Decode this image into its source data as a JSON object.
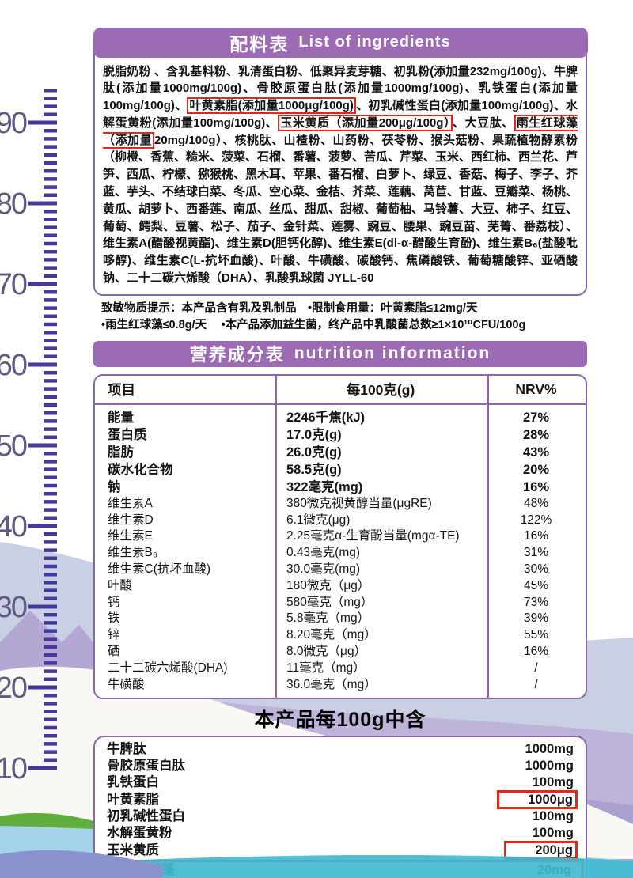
{
  "ingredients": {
    "title_zh": "配料表",
    "title_en": "List of ingredients",
    "segments": [
      {
        "text": "脱脂奶粉 、含乳基料粉、乳清蛋白粉、低聚异麦芽糖、初乳粉(添加量232mg/100g)、牛脾肽(添加量1000mg/100g)、骨胶原蛋白肽(添加量1000mg/100g)、乳铁蛋白(添加量100mg/100g)、",
        "boxed": false
      },
      {
        "text": "叶黄素脂(添加量1000μg/100g)",
        "boxed": true
      },
      {
        "text": "、初乳碱性蛋白(添加量100mg/100g)、水解蛋黄粉(添加量100mg/100g)、",
        "boxed": false
      },
      {
        "text": "玉米黄质（添加量200μg/100g）",
        "boxed": true
      },
      {
        "text": "、大豆肽、",
        "boxed": false
      },
      {
        "text": "雨生红球藻（添加量",
        "boxed": true
      },
      {
        "text": "20mg/100g）、核桃肽、山楂粉、山药粉、茯苓粉、猴头菇粉、果蔬植物酵素粉（柳橙、香蕉、糙米、菠菜、石榴、番薯、菠萝、苦瓜、芹菜、玉米、西红柿、西兰花、芦笋、西瓜、柠檬、猕猴桃、黑木耳、苹果、番石榴、白萝卜、绿豆、香菇、梅子、李子、芥蓝、芋头、不结球白菜、冬瓜、空心菜、金桔、芥菜、莲藕、莴苣、甘蓝、豆瓣菜、杨桃、黄瓜、胡萝卜、西番莲、南瓜、丝瓜、甜瓜、甜椒、葡萄柚、马铃薯、大豆、柿子、红豆、葡萄、鳄梨、豆薯、松子、茄子、金针菜、莲雾、豌豆、腰果、豌豆苗、芜菁、番荔枝）、维生素A(醋酸视黄酯)、维生素D(胆钙化醇)、维生素E(dl-α-醋酸生育酚)、维生素B₆(盐酸吡哆醇)、维生素C(L-抗坏血酸)、叶酸、牛磺酸、碳酸钙、焦磷酸铁、葡萄糖酸锌、亚硒酸钠、二十二碳六烯酸（DHA）、乳酸乳球菌 JYLL-60",
        "boxed": false
      }
    ]
  },
  "allergen": {
    "line1": "致敏物质提示：本产品含有乳及乳制品　•限制食用量：叶黄素脂≤12mg/天",
    "line2": "•雨生红球藻≤0.8g/天　 •本产品添加益生菌，终产品中乳酸菌总数≥1×10¹⁰CFU/100g"
  },
  "nutrition": {
    "title_zh": "营养成分表",
    "title_en": "nutrition information",
    "columns": [
      "项目",
      "每100克(g)",
      "NRV%"
    ],
    "rows": [
      {
        "name": "能量",
        "value": "2246千焦(kJ)",
        "nrv": "27%",
        "bold": true
      },
      {
        "name": "蛋白质",
        "value": "17.0克(g)",
        "nrv": "28%",
        "bold": true
      },
      {
        "name": "脂肪",
        "value": "26.0克(g)",
        "nrv": "43%",
        "bold": true
      },
      {
        "name": "碳水化合物",
        "value": "58.5克(g)",
        "nrv": "20%",
        "bold": true
      },
      {
        "name": "钠",
        "value": "322毫克(mg)",
        "nrv": "16%",
        "bold": true
      },
      {
        "name": "维生素A",
        "value": "380微克视黄醇当量(μgRE)",
        "nrv": "48%",
        "bold": false
      },
      {
        "name": "维生素D",
        "value": "6.1微克(μg)",
        "nrv": "122%",
        "bold": false
      },
      {
        "name": "维生素E",
        "value": "2.25毫克α-生育酚当量(mgα-TE)",
        "nrv": "16%",
        "bold": false
      },
      {
        "name": "维生素B₆",
        "value": "0.43毫克(mg)",
        "nrv": "31%",
        "bold": false
      },
      {
        "name": "维生素C(抗坏血酸)",
        "value": "30.0毫克(mg)",
        "nrv": "30%",
        "bold": false
      },
      {
        "name": "叶酸",
        "value": "180微克（μg）",
        "nrv": "45%",
        "bold": false
      },
      {
        "name": "钙",
        "value": "580毫克（mg）",
        "nrv": "73%",
        "bold": false
      },
      {
        "name": "铁",
        "value": "5.8毫克（mg）",
        "nrv": "39%",
        "bold": false
      },
      {
        "name": "锌",
        "value": "8.20毫克（mg）",
        "nrv": "55%",
        "bold": false
      },
      {
        "name": "硒",
        "value": "8.0微克（μg）",
        "nrv": "16%",
        "bold": false
      },
      {
        "name": "二十二碳六烯酸(DHA)",
        "value": "11毫克（mg）",
        "nrv": "/",
        "bold": false
      },
      {
        "name": "牛磺酸",
        "value": "36.0毫克（mg）",
        "nrv": "/",
        "bold": false
      }
    ]
  },
  "contains": {
    "heading": "本产品每100g中含",
    "rows": [
      {
        "name": "牛脾肽",
        "value": "1000mg",
        "highlight": "none"
      },
      {
        "name": "骨胶原蛋白肽",
        "value": "1000mg",
        "highlight": "none"
      },
      {
        "name": "乳铁蛋白",
        "value": "100mg",
        "highlight": "none"
      },
      {
        "name": "叶黄素脂",
        "value": "1000μg",
        "highlight": "value"
      },
      {
        "name": "初乳碱性蛋白",
        "value": "100mg",
        "highlight": "none"
      },
      {
        "name": "水解蛋黄粉",
        "value": "100mg",
        "highlight": "none"
      },
      {
        "name": "玉米黄质",
        "value": "200μg",
        "highlight": "value"
      },
      {
        "name": "雨生红球藻",
        "value": "20mg",
        "highlight": "row"
      }
    ]
  },
  "ruler": {
    "labels": [
      "90",
      "80",
      "70",
      "60",
      "50",
      "40",
      "30",
      "20",
      "10"
    ]
  },
  "colors": {
    "header_purple": "#9d6bb4",
    "border_purple": "#8a68a6",
    "annotation_red": "#e8251a",
    "ruler_indigo": "#46399b",
    "ruler_label_grey": "#5e5a80",
    "teal_wave": "#41b9cf",
    "periwinkle_wave": "#8a93cd"
  }
}
